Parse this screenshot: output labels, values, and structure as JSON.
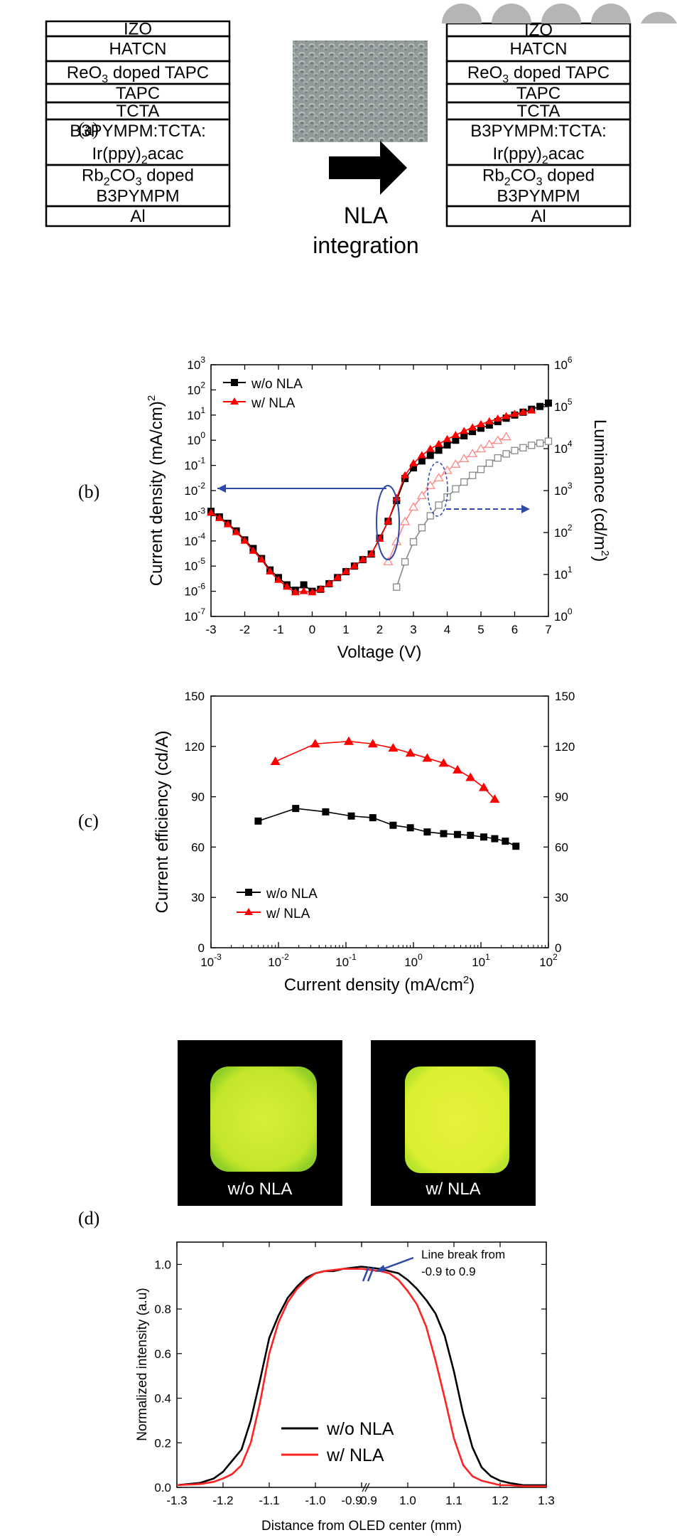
{
  "panel_labels": [
    "(a)",
    "(b)",
    "(c)",
    "(d)"
  ],
  "stack": {
    "layers": [
      {
        "id": "izo",
        "text": "IZO"
      },
      {
        "id": "hatcn",
        "text": "HATCN"
      },
      {
        "id": "reo3",
        "text": "ReO",
        "sub": "3",
        "rest": " doped TAPC"
      },
      {
        "id": "tapc",
        "text": "TAPC"
      },
      {
        "id": "tcta",
        "text": "TCTA"
      },
      {
        "id": "eml1",
        "text": "B3PYMPM:TCTA:"
      },
      {
        "id": "eml2",
        "text": "Ir(ppy)",
        "sub": "2",
        "rest": "acac"
      },
      {
        "id": "etl1",
        "text": "Rb",
        "sub": "2",
        "rest": "CO",
        "sub2": "3",
        "rest2": " doped"
      },
      {
        "id": "etl2",
        "text": "B3PYMPM"
      },
      {
        "id": "al",
        "text": "Al"
      }
    ],
    "arrow_text_1": "NLA",
    "arrow_text_2": "integration"
  },
  "chart_data": [
    {
      "id": "b",
      "type": "line",
      "xlabel": "Voltage (V)",
      "ylabel_left": "Current density (mA/cm)",
      "ylabel_left_sup": "2",
      "ylabel_right": "Luminance (cd/m",
      "ylabel_right_sup": "2",
      "ylabel_right_end": ")",
      "xlim": [
        -3,
        7
      ],
      "ylim_left": [
        1e-07,
        1000
      ],
      "ylim_right": [
        1,
        1000000
      ],
      "y_scale": "log",
      "xticks": [
        "-3",
        "-2",
        "-1",
        "0",
        "1",
        "2",
        "3",
        "4",
        "5",
        "6",
        "7"
      ],
      "yticks_left": [
        [
          "10",
          "3"
        ],
        [
          "10",
          "2"
        ],
        [
          "10",
          "1"
        ],
        [
          "10",
          "0"
        ],
        [
          "10",
          "-1"
        ],
        [
          "10",
          "-2"
        ],
        [
          "10",
          "-3"
        ],
        [
          "10",
          "-4"
        ],
        [
          "10",
          "-5"
        ],
        [
          "10",
          "-6"
        ],
        [
          "10",
          "-7"
        ]
      ],
      "yticks_right": [
        [
          "10",
          "6"
        ],
        [
          "10",
          "5"
        ],
        [
          "10",
          "4"
        ],
        [
          "10",
          "3"
        ],
        [
          "10",
          "2"
        ],
        [
          "10",
          "1"
        ],
        [
          "10",
          "0"
        ]
      ],
      "legend": [
        "w/o NLA",
        "w/ NLA"
      ],
      "series": [
        {
          "name": "w/o NLA",
          "axis": "left",
          "marker": "square-filled",
          "color": "#000000",
          "x": [
            -3.0,
            -2.75,
            -2.5,
            -2.25,
            -2.0,
            -1.75,
            -1.5,
            -1.25,
            -1.0,
            -0.75,
            -0.5,
            -0.25,
            0.0,
            0.25,
            0.5,
            0.75,
            1.0,
            1.25,
            1.5,
            1.75,
            2.0,
            2.25,
            2.5,
            2.75,
            3.0,
            3.25,
            3.5,
            3.75,
            4.0,
            4.25,
            4.5,
            4.75,
            5.0,
            5.25,
            5.5,
            5.75,
            6.0,
            6.25,
            6.5,
            6.75,
            7.0
          ],
          "y": [
            0.0015,
            0.0009,
            0.0005,
            0.00025,
            0.00011,
            5e-05,
            2e-05,
            7e-06,
            3.5e-06,
            1.8e-06,
            1.1e-06,
            1.8e-06,
            1e-06,
            1.2e-06,
            2e-06,
            3.5e-06,
            6e-06,
            1e-05,
            1.8e-05,
            3e-05,
            0.00013,
            0.0006,
            0.004,
            0.03,
            0.08,
            0.15,
            0.25,
            0.4,
            0.65,
            1.0,
            1.5,
            2.2,
            3.0,
            4.0,
            5.5,
            7.5,
            10,
            13,
            17,
            22,
            30
          ]
        },
        {
          "name": "w/ NLA",
          "axis": "left",
          "marker": "triangle-filled",
          "color": "#ff0000",
          "x": [
            -3.0,
            -2.75,
            -2.5,
            -2.25,
            -2.0,
            -1.75,
            -1.5,
            -1.25,
            -1.0,
            -0.75,
            -0.5,
            -0.25,
            0.0,
            0.25,
            0.5,
            0.75,
            1.0,
            1.25,
            1.5,
            1.75,
            2.0,
            2.25,
            2.5,
            2.75,
            3.0,
            3.25,
            3.5,
            3.75,
            4.0,
            4.25,
            4.5,
            4.75,
            5.0,
            5.25,
            5.5,
            5.75,
            6.0,
            6.25,
            6.5
          ],
          "y": [
            0.0013,
            0.0008,
            0.00045,
            0.00022,
            0.0001,
            4e-05,
            1.8e-05,
            6e-06,
            2.8e-06,
            1.5e-06,
            9e-07,
            1e-06,
            9e-07,
            1.2e-06,
            2e-06,
            3.5e-06,
            6e-06,
            1e-05,
            1.8e-05,
            3e-05,
            0.00012,
            0.0006,
            0.005,
            0.04,
            0.12,
            0.25,
            0.45,
            0.7,
            1.1,
            1.6,
            2.3,
            3.2,
            4.3,
            5.6,
            7.2,
            9.0,
            11,
            13,
            15
          ]
        },
        {
          "name": "w/o NLA luminance",
          "axis": "right",
          "marker": "square-open",
          "color": "#888888",
          "x": [
            2.5,
            2.75,
            3.0,
            3.25,
            3.5,
            3.75,
            4.0,
            4.25,
            4.5,
            4.75,
            5.0,
            5.25,
            5.5,
            5.75,
            6.0,
            6.25,
            6.5,
            6.75,
            7.0
          ],
          "y": [
            5,
            20,
            60,
            130,
            250,
            450,
            700,
            1100,
            1600,
            2300,
            3200,
            4500,
            6000,
            7500,
            9000,
            10500,
            12000,
            13500,
            15000
          ]
        },
        {
          "name": "w/ NLA luminance",
          "axis": "right",
          "marker": "triangle-open",
          "color": "#ff8888",
          "x": [
            2.25,
            2.5,
            2.75,
            3.0,
            3.25,
            3.5,
            3.75,
            4.0,
            4.25,
            4.5,
            4.75,
            5.0,
            5.25,
            5.5,
            5.75
          ],
          "y": [
            20,
            60,
            180,
            400,
            750,
            1300,
            2000,
            3000,
            4200,
            5700,
            7500,
            9800,
            12500,
            15500,
            19000
          ]
        }
      ]
    },
    {
      "id": "c",
      "type": "line",
      "xlabel": "Current density (mA/cm",
      "xlabel_sup": "2",
      "xlabel_end": ")",
      "ylabel_left": "Current efficiency (cd/A)",
      "x_scale": "log",
      "xlim": [
        0.001,
        100
      ],
      "ylim": [
        0,
        150
      ],
      "xticks": [
        [
          "10",
          "-3"
        ],
        [
          "10",
          "-2"
        ],
        [
          "10",
          "-1"
        ],
        [
          "10",
          "0"
        ],
        [
          "10",
          "1"
        ],
        [
          "10",
          "2"
        ]
      ],
      "yticks": [
        "0",
        "30",
        "60",
        "90",
        "120",
        "150"
      ],
      "legend": [
        "w/o NLA",
        "w/ NLA"
      ],
      "series": [
        {
          "name": "w/o NLA",
          "marker": "square-filled",
          "color": "#000000",
          "x": [
            0.005,
            0.018,
            0.05,
            0.12,
            0.25,
            0.5,
            0.9,
            1.6,
            2.8,
            4.5,
            7,
            11,
            16,
            23,
            33
          ],
          "y": [
            75.5,
            83,
            81,
            78.5,
            77.5,
            73,
            71.5,
            69,
            68,
            67.5,
            67,
            66,
            65,
            63.5,
            60.5
          ]
        },
        {
          "name": "w/ NLA",
          "marker": "triangle-filled",
          "color": "#ff0000",
          "x": [
            0.009,
            0.035,
            0.11,
            0.25,
            0.5,
            0.9,
            1.6,
            2.8,
            4.5,
            7,
            11,
            16
          ],
          "y": [
            111,
            121.5,
            123,
            121.5,
            119,
            116,
            113,
            110,
            106,
            101.5,
            95.5,
            88.5
          ]
        }
      ]
    },
    {
      "id": "d",
      "type": "line",
      "xlabel": "Distance from OLED center (mm)",
      "ylabel": "Normalized intensity (a.u)",
      "xlim": [
        -1.3,
        1.3
      ],
      "ylim": [
        0,
        1.1
      ],
      "xticks": [
        "-1.3",
        "-1.2",
        "-1.1",
        "-1.0",
        "-0.9",
        "0.9",
        "1.0",
        "1.1",
        "1.2",
        "1.3"
      ],
      "yticks": [
        "0.0",
        "0.2",
        "0.4",
        "0.6",
        "0.8",
        "1.0"
      ],
      "annotation": [
        "Line break from",
        "-0.9 to 0.9"
      ],
      "legend": [
        "w/o NLA",
        "w/ NLA"
      ],
      "series": [
        {
          "name": "w/o NLA",
          "color": "#000000",
          "x": [
            -1.3,
            -1.25,
            -1.22,
            -1.2,
            -1.18,
            -1.16,
            -1.14,
            -1.12,
            -1.1,
            -1.08,
            -1.06,
            -1.04,
            -1.02,
            -1.0,
            -0.98,
            -0.96,
            -0.94,
            -0.92,
            -0.9,
            0.9,
            0.92,
            0.94,
            0.96,
            0.98,
            1.0,
            1.02,
            1.04,
            1.06,
            1.08,
            1.1,
            1.12,
            1.14,
            1.16,
            1.18,
            1.2,
            1.22,
            1.25,
            1.3
          ],
          "y": [
            0.01,
            0.02,
            0.04,
            0.07,
            0.12,
            0.17,
            0.3,
            0.48,
            0.67,
            0.77,
            0.85,
            0.9,
            0.94,
            0.96,
            0.97,
            0.97,
            0.98,
            0.985,
            0.99,
            0.99,
            0.985,
            0.98,
            0.97,
            0.96,
            0.93,
            0.89,
            0.84,
            0.78,
            0.68,
            0.52,
            0.33,
            0.18,
            0.09,
            0.05,
            0.03,
            0.02,
            0.01,
            0.01
          ]
        },
        {
          "name": "w/ NLA",
          "color": "#ff2222",
          "x": [
            -1.3,
            -1.25,
            -1.22,
            -1.2,
            -1.18,
            -1.16,
            -1.14,
            -1.12,
            -1.1,
            -1.08,
            -1.06,
            -1.04,
            -1.02,
            -1.0,
            -0.98,
            -0.96,
            -0.94,
            -0.92,
            -0.9,
            0.9,
            0.92,
            0.94,
            0.96,
            0.98,
            1.0,
            1.02,
            1.04,
            1.06,
            1.08,
            1.1,
            1.12,
            1.14,
            1.16,
            1.18,
            1.2,
            1.22,
            1.25,
            1.3
          ],
          "y": [
            0.01,
            0.015,
            0.025,
            0.04,
            0.06,
            0.1,
            0.2,
            0.38,
            0.6,
            0.74,
            0.83,
            0.89,
            0.93,
            0.96,
            0.97,
            0.975,
            0.98,
            0.98,
            0.98,
            0.98,
            0.975,
            0.97,
            0.96,
            0.93,
            0.88,
            0.82,
            0.72,
            0.57,
            0.4,
            0.22,
            0.1,
            0.05,
            0.03,
            0.02,
            0.01,
            0.01,
            0.005,
            0.005
          ]
        }
      ]
    }
  ],
  "photos": [
    {
      "label": "w/o NLA"
    },
    {
      "label": "w/ NLA"
    }
  ]
}
